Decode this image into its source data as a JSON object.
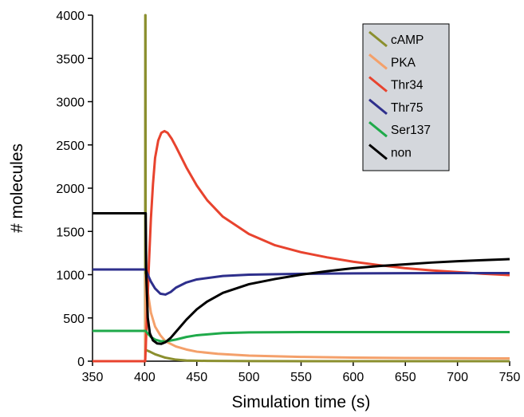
{
  "chart_data": {
    "type": "line",
    "xlabel": "Simulation time (s)",
    "ylabel": "# molecules",
    "xlim": [
      350,
      750
    ],
    "ylim": [
      0,
      4000
    ],
    "xticks": [
      350,
      400,
      450,
      500,
      550,
      600,
      650,
      700,
      750
    ],
    "yticks": [
      0,
      500,
      1000,
      1500,
      2000,
      2500,
      3000,
      3500,
      4000
    ],
    "grid": false,
    "legend_position": "top-right",
    "series": [
      {
        "name": "cAMP",
        "color": "#8b8f2e",
        "points": [
          [
            350,
            0
          ],
          [
            400.5,
            0
          ],
          [
            400.6,
            4000
          ],
          [
            400.8,
            4000
          ],
          [
            401,
            130
          ],
          [
            405,
            110
          ],
          [
            410,
            80
          ],
          [
            420,
            40
          ],
          [
            430,
            18
          ],
          [
            440,
            8
          ],
          [
            460,
            3
          ],
          [
            500,
            1
          ],
          [
            600,
            0
          ],
          [
            750,
            0
          ]
        ]
      },
      {
        "name": "PKA",
        "color": "#f4a06a",
        "points": [
          [
            350,
            0
          ],
          [
            400.5,
            0
          ],
          [
            401,
            1000
          ],
          [
            403,
            800
          ],
          [
            406,
            560
          ],
          [
            410,
            400
          ],
          [
            415,
            300
          ],
          [
            420,
            230
          ],
          [
            430,
            170
          ],
          [
            440,
            135
          ],
          [
            450,
            110
          ],
          [
            470,
            85
          ],
          [
            500,
            65
          ],
          [
            550,
            50
          ],
          [
            600,
            42
          ],
          [
            650,
            37
          ],
          [
            700,
            34
          ],
          [
            750,
            32
          ]
        ]
      },
      {
        "name": "Thr34",
        "color": "#e8432e",
        "points": [
          [
            350,
            0
          ],
          [
            400.5,
            0
          ],
          [
            402,
            450
          ],
          [
            404,
            1100
          ],
          [
            406,
            1650
          ],
          [
            408,
            2050
          ],
          [
            410,
            2350
          ],
          [
            413,
            2550
          ],
          [
            416,
            2640
          ],
          [
            419,
            2660
          ],
          [
            422,
            2640
          ],
          [
            426,
            2570
          ],
          [
            430,
            2480
          ],
          [
            440,
            2240
          ],
          [
            450,
            2030
          ],
          [
            460,
            1860
          ],
          [
            475,
            1670
          ],
          [
            500,
            1470
          ],
          [
            525,
            1340
          ],
          [
            550,
            1260
          ],
          [
            575,
            1200
          ],
          [
            600,
            1150
          ],
          [
            625,
            1110
          ],
          [
            650,
            1075
          ],
          [
            675,
            1050
          ],
          [
            700,
            1030
          ],
          [
            725,
            1010
          ],
          [
            750,
            995
          ]
        ]
      },
      {
        "name": "Thr75",
        "color": "#2e2f8c",
        "points": [
          [
            350,
            1060
          ],
          [
            401,
            1060
          ],
          [
            403,
            1000
          ],
          [
            406,
            920
          ],
          [
            410,
            840
          ],
          [
            415,
            780
          ],
          [
            420,
            770
          ],
          [
            425,
            800
          ],
          [
            430,
            850
          ],
          [
            440,
            910
          ],
          [
            450,
            945
          ],
          [
            475,
            985
          ],
          [
            500,
            1000
          ],
          [
            550,
            1010
          ],
          [
            600,
            1015
          ],
          [
            650,
            1017
          ],
          [
            700,
            1018
          ],
          [
            750,
            1018
          ]
        ]
      },
      {
        "name": "Ser137",
        "color": "#1faa4a",
        "points": [
          [
            350,
            350
          ],
          [
            401,
            350
          ],
          [
            403,
            320
          ],
          [
            406,
            280
          ],
          [
            410,
            250
          ],
          [
            415,
            232
          ],
          [
            420,
            228
          ],
          [
            430,
            250
          ],
          [
            440,
            280
          ],
          [
            450,
            300
          ],
          [
            475,
            325
          ],
          [
            500,
            333
          ],
          [
            550,
            336
          ],
          [
            600,
            336
          ],
          [
            650,
            336
          ],
          [
            700,
            336
          ],
          [
            750,
            336
          ]
        ]
      },
      {
        "name": "non",
        "color": "#000000",
        "points": [
          [
            350,
            1710
          ],
          [
            401,
            1710
          ],
          [
            401.5,
            1000
          ],
          [
            403,
            500
          ],
          [
            405,
            320
          ],
          [
            408,
            240
          ],
          [
            412,
            205
          ],
          [
            416,
            200
          ],
          [
            420,
            220
          ],
          [
            425,
            270
          ],
          [
            430,
            340
          ],
          [
            440,
            480
          ],
          [
            450,
            600
          ],
          [
            460,
            690
          ],
          [
            475,
            790
          ],
          [
            500,
            890
          ],
          [
            525,
            950
          ],
          [
            550,
            1000
          ],
          [
            575,
            1040
          ],
          [
            600,
            1075
          ],
          [
            625,
            1100
          ],
          [
            650,
            1120
          ],
          [
            675,
            1140
          ],
          [
            700,
            1155
          ],
          [
            725,
            1168
          ],
          [
            750,
            1180
          ]
        ]
      }
    ]
  }
}
